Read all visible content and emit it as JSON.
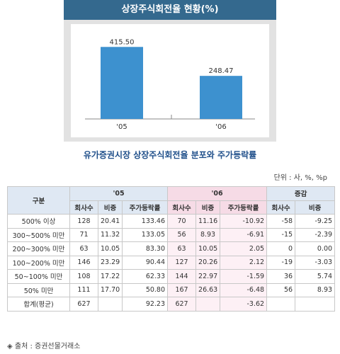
{
  "chart_data": {
    "type": "bar",
    "title": "상장주식회전율 현황(%)",
    "categories": [
      "'05",
      "'06"
    ],
    "values": [
      415.5,
      248.47
    ],
    "value_labels": [
      "415.50",
      "248.47"
    ],
    "ylim": [
      0,
      450
    ],
    "bar_color": "#3d91cf",
    "title_bg": "#34698e"
  },
  "subtitle": "유가증권시장 상장주식회전율 분포와 주가등락률",
  "unit": "단위 : 사, %, %p",
  "table": {
    "group_header": "구분",
    "year_05": "'05",
    "year_06": "'06",
    "change": "증감",
    "sub_headers": {
      "companies": "회사수",
      "share": "비중",
      "price_change": "주가등락률"
    },
    "rows": [
      {
        "label": "500% 이상",
        "c05": "128",
        "s05": "20.41",
        "p05": "133.46",
        "c06": "70",
        "s06": "11.16",
        "p06": "-10.92",
        "dc": "-58",
        "ds": "-9.25"
      },
      {
        "label": "300~500% 미만",
        "c05": "71",
        "s05": "11.32",
        "p05": "133.05",
        "c06": "56",
        "s06": "8.93",
        "p06": "-6.91",
        "dc": "-15",
        "ds": "-2.39"
      },
      {
        "label": "200~300% 미만",
        "c05": "63",
        "s05": "10.05",
        "p05": "83.30",
        "c06": "63",
        "s06": "10.05",
        "p06": "2.05",
        "dc": "0",
        "ds": "0.00"
      },
      {
        "label": "100~200% 미만",
        "c05": "146",
        "s05": "23.29",
        "p05": "90.44",
        "c06": "127",
        "s06": "20.26",
        "p06": "2.12",
        "dc": "-19",
        "ds": "-3.03"
      },
      {
        "label": "50~100% 미만",
        "c05": "108",
        "s05": "17.22",
        "p05": "62.33",
        "c06": "144",
        "s06": "22.97",
        "p06": "-1.59",
        "dc": "36",
        "ds": "5.74"
      },
      {
        "label": "50% 미만",
        "c05": "111",
        "s05": "17.70",
        "p05": "50.80",
        "c06": "167",
        "s06": "26.63",
        "p06": "-6.48",
        "dc": "56",
        "ds": "8.93"
      },
      {
        "label": "합계(평균)",
        "c05": "627",
        "s05": "",
        "p05": "92.23",
        "c06": "627",
        "s06": "",
        "p06": "-3.62",
        "dc": "",
        "ds": ""
      }
    ]
  },
  "source": "◈ 출처 : 증권선물거래소"
}
